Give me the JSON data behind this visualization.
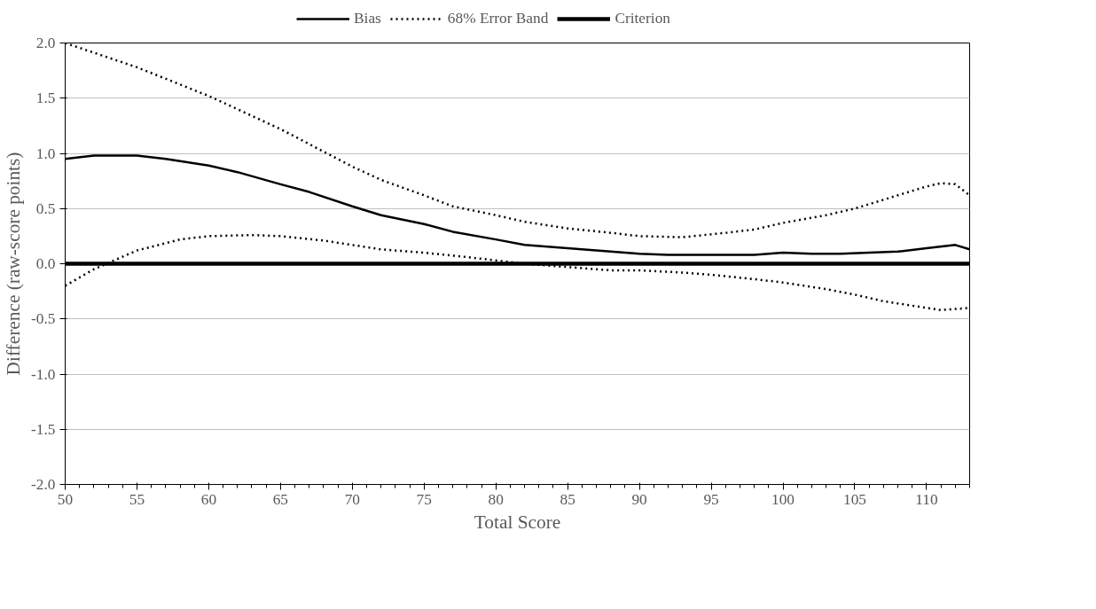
{
  "chart_data": {
    "type": "line",
    "xlabel": "Total Score",
    "ylabel": "Difference (raw-score points)",
    "xlim": [
      50,
      113
    ],
    "xticks": [
      50,
      55,
      60,
      65,
      70,
      75,
      80,
      85,
      90,
      95,
      100,
      105,
      110
    ],
    "ylim": [
      -2.0,
      2.0
    ],
    "yticks": [
      {
        "value": -2,
        "label": "-2.0"
      },
      {
        "value": -1.5,
        "label": "-1.5"
      },
      {
        "value": -1,
        "label": "-1.0"
      },
      {
        "value": -0.5,
        "label": "-0.5"
      },
      {
        "value": 0,
        "label": "0.0"
      },
      {
        "value": 0.5,
        "label": "0.5"
      },
      {
        "value": 1,
        "label": "1.0"
      },
      {
        "value": 1.5,
        "label": "1.5"
      },
      {
        "value": 2,
        "label": "2.0"
      }
    ],
    "grid": "y",
    "legend": "top",
    "series": [
      {
        "name": "Bias",
        "color": "#000000",
        "line_style": "solid",
        "x": [
          50,
          52,
          55,
          57,
          60,
          62,
          65,
          67,
          70,
          72,
          75,
          77,
          80,
          82,
          85,
          88,
          90,
          92,
          95,
          98,
          100,
          102,
          104,
          106,
          108,
          110,
          112,
          113
        ],
        "values": [
          0.95,
          0.98,
          0.98,
          0.95,
          0.89,
          0.83,
          0.72,
          0.65,
          0.52,
          0.44,
          0.36,
          0.29,
          0.22,
          0.17,
          0.14,
          0.11,
          0.09,
          0.08,
          0.08,
          0.08,
          0.1,
          0.09,
          0.09,
          0.1,
          0.11,
          0.14,
          0.17,
          0.13
        ]
      },
      {
        "name": "68% Error Band",
        "color": "#000000",
        "line_style": "dotted",
        "x": [
          50,
          55,
          60,
          65,
          70,
          72,
          75,
          77,
          80,
          82,
          85,
          88,
          90,
          93,
          96,
          98,
          100,
          103,
          105,
          108,
          110,
          111,
          112,
          113
        ],
        "values": [
          2.0,
          1.78,
          1.52,
          1.22,
          0.88,
          0.76,
          0.62,
          0.52,
          0.44,
          0.38,
          0.32,
          0.28,
          0.25,
          0.24,
          0.28,
          0.31,
          0.37,
          0.44,
          0.5,
          0.62,
          0.7,
          0.73,
          0.72,
          0.62
        ]
      },
      {
        "color": "#000000",
        "line_style": "dotted",
        "x": [
          50,
          52,
          55,
          58,
          60,
          63,
          65,
          68,
          70,
          72,
          75,
          78,
          80,
          82,
          85,
          88,
          90,
          93,
          95,
          98,
          100,
          103,
          105,
          107,
          110,
          111,
          113
        ],
        "values": [
          -0.2,
          -0.05,
          0.12,
          0.22,
          0.25,
          0.26,
          0.25,
          0.21,
          0.17,
          0.13,
          0.1,
          0.06,
          0.03,
          0.0,
          -0.03,
          -0.06,
          -0.06,
          -0.08,
          -0.1,
          -0.14,
          -0.17,
          -0.23,
          -0.28,
          -0.34,
          -0.4,
          -0.42,
          -0.4
        ]
      }
    ],
    "ref_lines": [
      {
        "axis": "y",
        "value": 0,
        "label": "Criterion",
        "color": "#000000",
        "line_style": "solid"
      }
    ]
  }
}
